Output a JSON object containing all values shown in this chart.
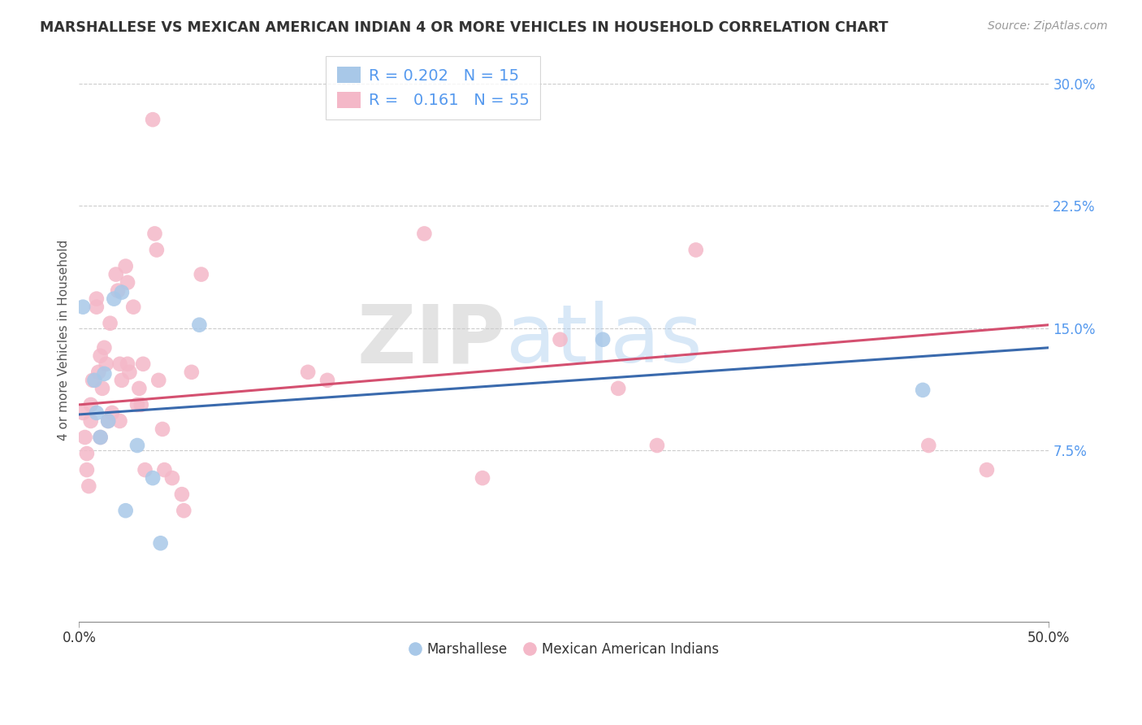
{
  "title": "MARSHALLESE VS MEXICAN AMERICAN INDIAN 4 OR MORE VEHICLES IN HOUSEHOLD CORRELATION CHART",
  "source": "Source: ZipAtlas.com",
  "ylabel": "4 or more Vehicles in Household",
  "yticks": [
    0.075,
    0.15,
    0.225,
    0.3
  ],
  "ytick_labels": [
    "7.5%",
    "15.0%",
    "22.5%",
    "30.0%"
  ],
  "xlim": [
    0.0,
    0.5
  ],
  "ylim": [
    -0.03,
    0.315
  ],
  "legend1_R": "0.202",
  "legend1_N": "15",
  "legend2_R": "0.161",
  "legend2_N": "55",
  "blue_color": "#a8c8e8",
  "pink_color": "#f4b8c8",
  "blue_line_color": "#3a6aad",
  "pink_line_color": "#d45070",
  "watermark_ZIP": "ZIP",
  "watermark_atlas": "atlas",
  "blue_line_x": [
    0.0,
    0.5
  ],
  "blue_line_y": [
    0.097,
    0.138
  ],
  "pink_line_x": [
    0.0,
    0.5
  ],
  "pink_line_y": [
    0.103,
    0.152
  ],
  "marshallese_x": [
    0.002,
    0.008,
    0.009,
    0.011,
    0.013,
    0.015,
    0.018,
    0.022,
    0.024,
    0.03,
    0.038,
    0.042,
    0.062,
    0.27,
    0.435
  ],
  "marshallese_y": [
    0.163,
    0.118,
    0.098,
    0.083,
    0.122,
    0.093,
    0.168,
    0.172,
    0.038,
    0.078,
    0.058,
    0.018,
    0.152,
    0.143,
    0.112
  ],
  "mexican_x": [
    0.002,
    0.003,
    0.004,
    0.004,
    0.005,
    0.006,
    0.006,
    0.007,
    0.009,
    0.009,
    0.01,
    0.011,
    0.011,
    0.012,
    0.013,
    0.014,
    0.015,
    0.016,
    0.017,
    0.019,
    0.02,
    0.021,
    0.021,
    0.022,
    0.024,
    0.025,
    0.025,
    0.026,
    0.028,
    0.03,
    0.031,
    0.032,
    0.033,
    0.034,
    0.038,
    0.039,
    0.04,
    0.041,
    0.043,
    0.044,
    0.048,
    0.053,
    0.054,
    0.058,
    0.063,
    0.118,
    0.128,
    0.178,
    0.208,
    0.248,
    0.278,
    0.298,
    0.318,
    0.438,
    0.468
  ],
  "mexican_y": [
    0.098,
    0.083,
    0.073,
    0.063,
    0.053,
    0.103,
    0.093,
    0.118,
    0.168,
    0.163,
    0.123,
    0.083,
    0.133,
    0.113,
    0.138,
    0.128,
    0.093,
    0.153,
    0.098,
    0.183,
    0.173,
    0.093,
    0.128,
    0.118,
    0.188,
    0.178,
    0.128,
    0.123,
    0.163,
    0.103,
    0.113,
    0.103,
    0.128,
    0.063,
    0.278,
    0.208,
    0.198,
    0.118,
    0.088,
    0.063,
    0.058,
    0.048,
    0.038,
    0.123,
    0.183,
    0.123,
    0.118,
    0.208,
    0.058,
    0.143,
    0.113,
    0.078,
    0.198,
    0.078,
    0.063
  ]
}
